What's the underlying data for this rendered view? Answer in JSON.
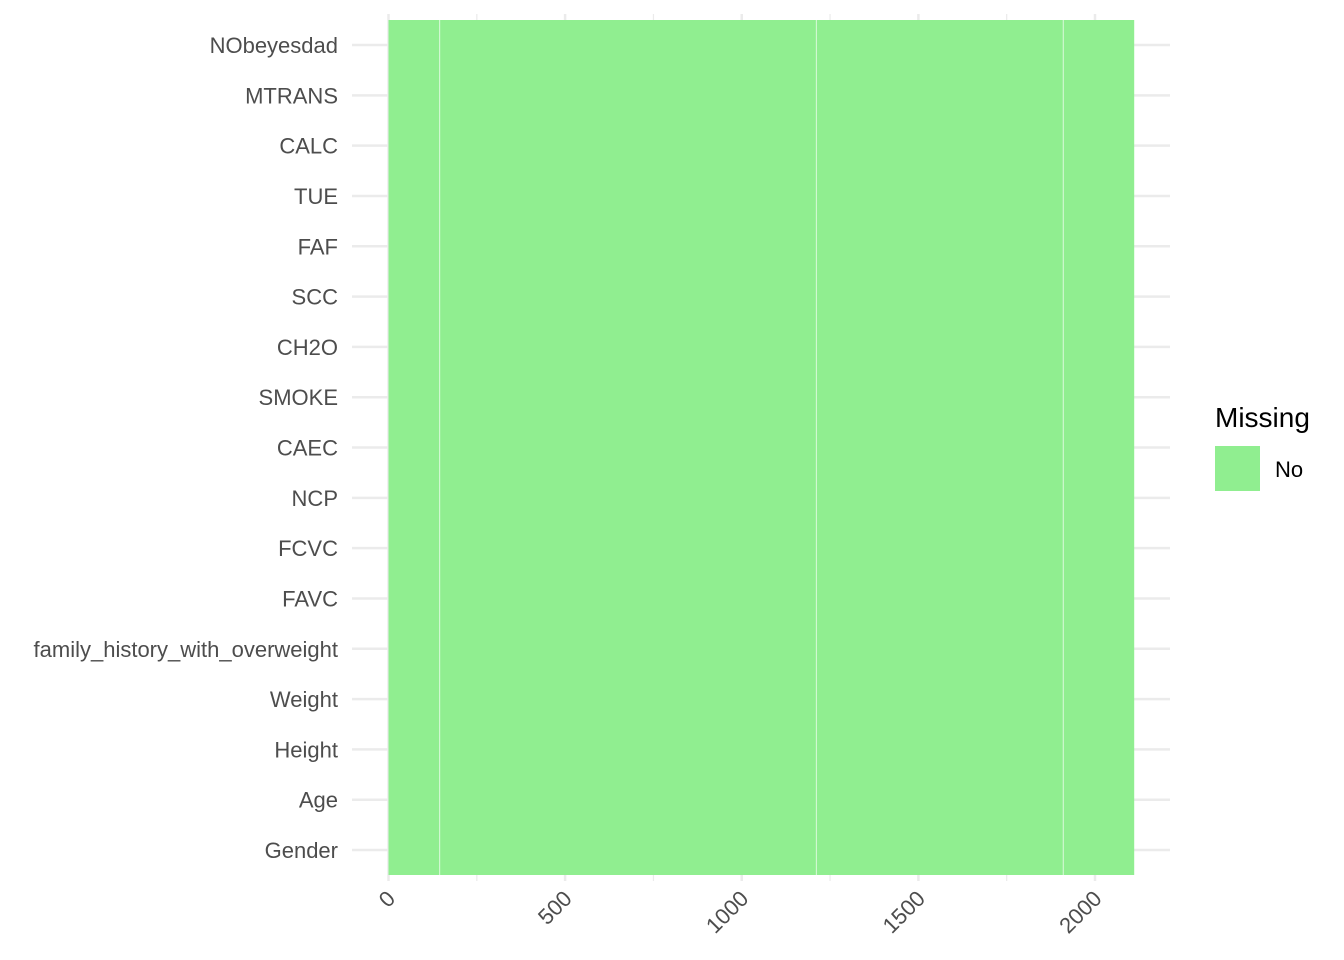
{
  "chart_data": {
    "type": "heatmap",
    "title": "",
    "xlabel": "",
    "ylabel": "",
    "rows": [
      "NObeyesdad",
      "MTRANS",
      "CALC",
      "TUE",
      "FAF",
      "SCC",
      "CH2O",
      "SMOKE",
      "CAEC",
      "NCP",
      "FCVC",
      "FAVC",
      "family_history_with_overweight",
      "Weight",
      "Height",
      "Age",
      "Gender"
    ],
    "x_ticks": [
      0,
      500,
      1000,
      1500,
      2000
    ],
    "x_tick_labels": [
      "0",
      "500",
      "1000",
      "1500",
      "2000"
    ],
    "xlim": [
      0,
      2111
    ],
    "n_observations": 2111,
    "cells": [
      {
        "x_start": 0,
        "x_end": 2111,
        "missing": "No"
      }
    ],
    "grid": true,
    "legend": {
      "title": "Missing",
      "placement": "right",
      "entries": [
        {
          "label": "No",
          "color": "#90ee90"
        }
      ]
    },
    "colors": {
      "no_missing": "#90ee90",
      "grid": "#ebebeb",
      "tile_border": "#ffffff"
    }
  }
}
